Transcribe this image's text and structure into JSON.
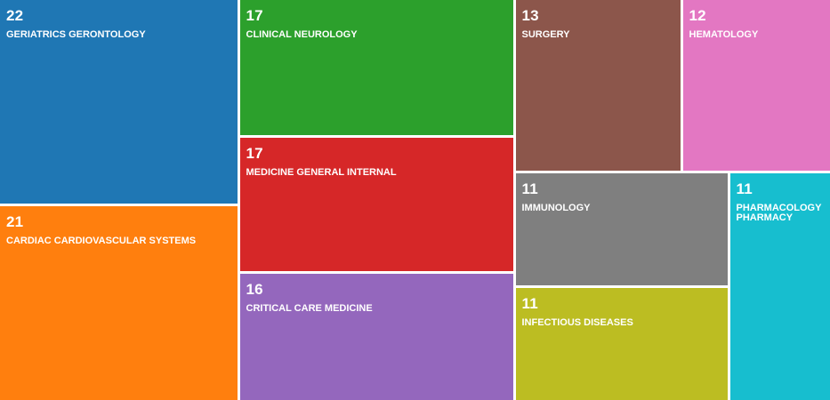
{
  "chart_data": {
    "type": "treemap",
    "items": [
      {
        "label": "GERIATRICS GERONTOLOGY",
        "value": 22,
        "color": "#1f77b4"
      },
      {
        "label": "CARDIAC CARDIOVASCULAR SYSTEMS",
        "value": 21,
        "color": "#ff7f0e"
      },
      {
        "label": "CLINICAL NEUROLOGY",
        "value": 17,
        "color": "#2ca02c"
      },
      {
        "label": "MEDICINE GENERAL INTERNAL",
        "value": 17,
        "color": "#d62728"
      },
      {
        "label": "CRITICAL CARE MEDICINE",
        "value": 16,
        "color": "#9467bd"
      },
      {
        "label": "SURGERY",
        "value": 13,
        "color": "#8c564b"
      },
      {
        "label": "HEMATOLOGY",
        "value": 12,
        "color": "#e377c2"
      },
      {
        "label": "IMMUNOLOGY",
        "value": 11,
        "color": "#7f7f7f"
      },
      {
        "label": "INFECTIOUS DISEASES",
        "value": 11,
        "color": "#bcbd22"
      },
      {
        "label": "PHARMACOLOGY PHARMACY",
        "value": 11,
        "color": "#17becf"
      }
    ]
  }
}
